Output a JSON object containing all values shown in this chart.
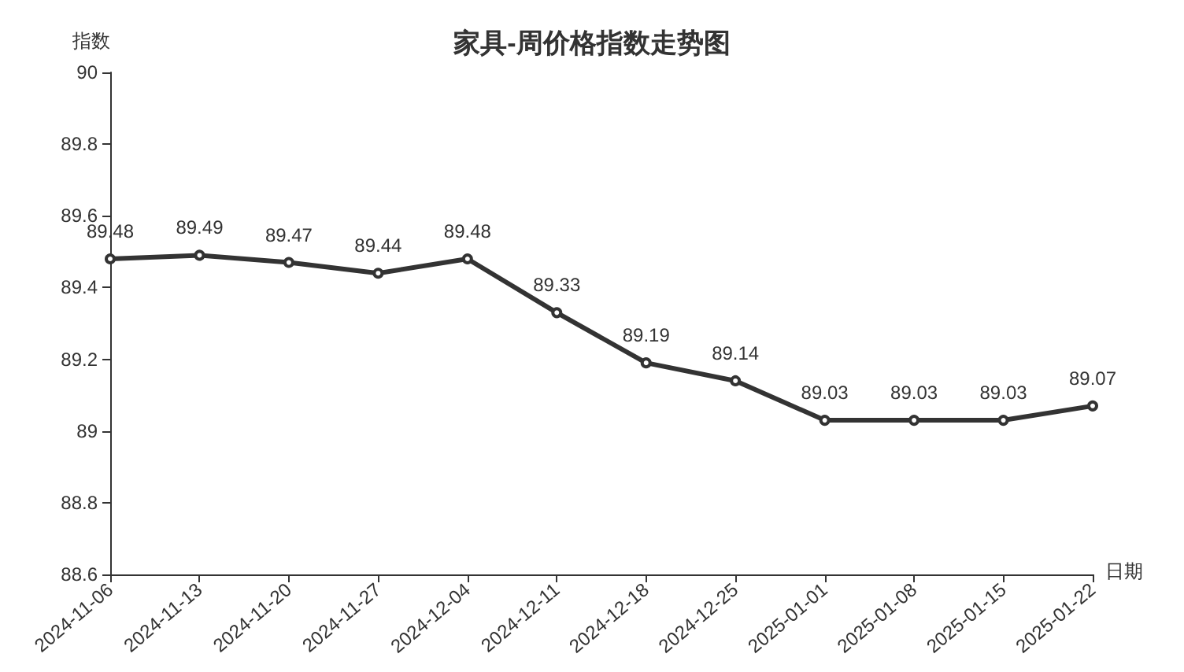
{
  "chart_data": {
    "type": "line",
    "title": "家具-周价格指数走势图",
    "xlabel": "日期",
    "ylabel": "指数",
    "categories": [
      "2024-11-06",
      "2024-11-13",
      "2024-11-20",
      "2024-11-27",
      "2024-12-04",
      "2024-12-11",
      "2024-12-18",
      "2024-12-25",
      "2025-01-01",
      "2025-01-08",
      "2025-01-15",
      "2025-01-22"
    ],
    "series": [
      {
        "color": "#333333",
        "values": [
          89.48,
          89.49,
          89.47,
          89.44,
          89.48,
          89.33,
          89.19,
          89.14,
          89.03,
          89.03,
          89.03,
          89.07
        ]
      }
    ],
    "ylim": [
      88.6,
      90
    ],
    "yticks": [
      88.6,
      88.8,
      89,
      89.2,
      89.4,
      89.6,
      89.8,
      90
    ],
    "grid": false,
    "marker": "circle",
    "line_style": "solid",
    "data_labels": true
  }
}
